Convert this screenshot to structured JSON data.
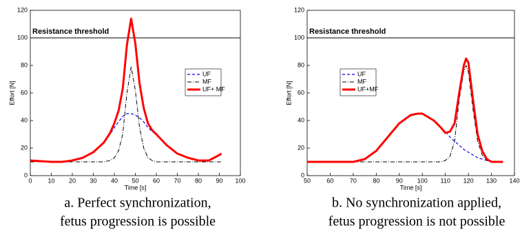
{
  "chart_data": [
    {
      "type": "line",
      "xlabel": "Time [s]",
      "ylabel": "Effort [N]",
      "caption": [
        "a. Perfect synchronization,",
        "fetus progression is possible"
      ],
      "xlim": [
        0,
        100
      ],
      "ylim": [
        0,
        120
      ],
      "xticks": [
        0,
        10,
        20,
        30,
        40,
        50,
        60,
        70,
        80,
        90,
        100
      ],
      "yticks": [
        0,
        20,
        40,
        60,
        80,
        100,
        120
      ],
      "threshold": {
        "value": 100,
        "label": "Resistance threshold"
      },
      "legend": "center right",
      "x": [
        0,
        5,
        10,
        15,
        20,
        25,
        30,
        35,
        38,
        40,
        42,
        44,
        46,
        48,
        50,
        52,
        54,
        56,
        58,
        60,
        65,
        70,
        75,
        80,
        85,
        90,
        91
      ],
      "series": [
        {
          "name": "UF",
          "color": "#0000ff",
          "linestyle": "dashed",
          "values": [
            11,
            10.5,
            10,
            10,
            11,
            13,
            17,
            24,
            30,
            35,
            39,
            43,
            45,
            45,
            44,
            42,
            39,
            35,
            32,
            30,
            22,
            16,
            13,
            11,
            11,
            15,
            16
          ]
        },
        {
          "name": "MF",
          "color": "#000000",
          "linestyle": "dashdot",
          "values": [
            10,
            10,
            10,
            10,
            10,
            10,
            10,
            10,
            11,
            13,
            18,
            30,
            60,
            79,
            62,
            35,
            20,
            13,
            11,
            10,
            10,
            10,
            10,
            10,
            10,
            10,
            10
          ]
        },
        {
          "name": "UF+ MF",
          "color": "#ff0000",
          "linestyle": "thick",
          "values": [
            11,
            10.5,
            10,
            10,
            11,
            13,
            17,
            24,
            31,
            38,
            47,
            63,
            95,
            114,
            96,
            67,
            49,
            38,
            33,
            30,
            22,
            16,
            13,
            11,
            11,
            15,
            16
          ]
        }
      ]
    },
    {
      "type": "line",
      "xlabel": "Time [s]",
      "ylabel": "Effort [N]",
      "caption": [
        "b. No synchronization applied,",
        "fetus progression is not possible"
      ],
      "xlim": [
        50,
        140
      ],
      "ylim": [
        0,
        120
      ],
      "xticks": [
        50,
        60,
        70,
        80,
        90,
        100,
        110,
        120,
        130,
        140
      ],
      "yticks": [
        0,
        20,
        40,
        60,
        80,
        100,
        120
      ],
      "threshold": {
        "value": 100,
        "label": "Resistance threshold"
      },
      "legend": "center left",
      "x": [
        50,
        60,
        70,
        75,
        80,
        85,
        90,
        95,
        98,
        100,
        105,
        108,
        110,
        112,
        114,
        116,
        118,
        119,
        120,
        122,
        124,
        126,
        128,
        130,
        135
      ],
      "series": [
        {
          "name": "UF",
          "color": "#0000ff",
          "linestyle": "dashed",
          "values": [
            10,
            10,
            10,
            12,
            18,
            28,
            38,
            44,
            45,
            45,
            40,
            35,
            32,
            28,
            25,
            22,
            19,
            18,
            17,
            15,
            13,
            12,
            11,
            10,
            10
          ]
        },
        {
          "name": "MF",
          "color": "#000000",
          "linestyle": "dashdot",
          "values": [
            10,
            10,
            10,
            10,
            10,
            10,
            10,
            10,
            10,
            10,
            10,
            10,
            11,
            14,
            25,
            55,
            76,
            80,
            75,
            48,
            25,
            15,
            11,
            10,
            10
          ]
        },
        {
          "name": "UF+MF",
          "color": "#ff0000",
          "linestyle": "thick",
          "values": [
            10,
            10,
            10,
            12,
            18,
            28,
            38,
            44,
            45,
            45,
            40,
            35,
            31,
            32,
            38,
            60,
            80,
            85,
            82,
            55,
            30,
            18,
            12,
            10,
            10
          ]
        }
      ]
    }
  ]
}
